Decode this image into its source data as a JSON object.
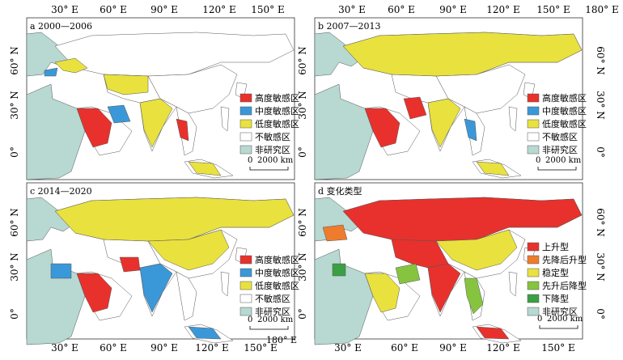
{
  "axis": {
    "lon_labels": [
      "30° E",
      "60° E",
      "90° E",
      "120° E",
      "150° E",
      "180° E"
    ],
    "lat_labels": [
      "60° N",
      "30° N",
      "0°"
    ]
  },
  "colors": {
    "high": "#e8312c",
    "medium": "#3a98d8",
    "low": "#e9e13e",
    "none": "#ffffff",
    "outside": "#b8d8d2",
    "rise": "#e8312c",
    "fall_rise": "#ee7c2c",
    "stable": "#e9e13e",
    "rise_fall": "#86c440",
    "fall": "#3aa043",
    "border": "#555555"
  },
  "legend_sens": [
    "高度敏感区",
    "中度敏感区",
    "低度敏感区",
    "不敏感区",
    "非研究区"
  ],
  "legend_change": [
    "上升型",
    "先降后升型",
    "稳定型",
    "先升后降型",
    "下降型",
    "非研究区"
  ],
  "scale_label": "2000 km",
  "scale_zero": "0",
  "panels": [
    {
      "title": "a 2000—2006"
    },
    {
      "title": "b 2007—2013"
    },
    {
      "title": "c 2014—2020"
    },
    {
      "title": "d 变化类型"
    }
  ]
}
